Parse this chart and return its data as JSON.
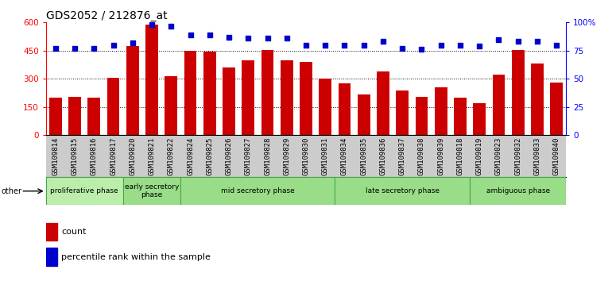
{
  "title": "GDS2052 / 212876_at",
  "samples": [
    "GSM109814",
    "GSM109815",
    "GSM109816",
    "GSM109817",
    "GSM109820",
    "GSM109821",
    "GSM109822",
    "GSM109824",
    "GSM109825",
    "GSM109826",
    "GSM109827",
    "GSM109828",
    "GSM109829",
    "GSM109830",
    "GSM109831",
    "GSM109834",
    "GSM109835",
    "GSM109836",
    "GSM109837",
    "GSM109838",
    "GSM109839",
    "GSM109818",
    "GSM109819",
    "GSM109823",
    "GSM109832",
    "GSM109833",
    "GSM109840"
  ],
  "counts": [
    200,
    205,
    200,
    305,
    475,
    590,
    315,
    450,
    445,
    360,
    400,
    455,
    400,
    390,
    300,
    275,
    215,
    340,
    235,
    205,
    255,
    200,
    170,
    320,
    455,
    380,
    280
  ],
  "percentiles": [
    77,
    77,
    77,
    80,
    82,
    98,
    97,
    89,
    89,
    87,
    86,
    86,
    86,
    80,
    80,
    80,
    80,
    83,
    77,
    76,
    80,
    80,
    79,
    85,
    83,
    83,
    80
  ],
  "phases": [
    {
      "label": "proliferative phase",
      "start": 0,
      "end": 4,
      "color": "#bbeeaa"
    },
    {
      "label": "early secretory\nphase",
      "start": 4,
      "end": 7,
      "color": "#99dd88"
    },
    {
      "label": "mid secretory phase",
      "start": 7,
      "end": 15,
      "color": "#99dd88"
    },
    {
      "label": "late secretory phase",
      "start": 15,
      "end": 22,
      "color": "#99dd88"
    },
    {
      "label": "ambiguous phase",
      "start": 22,
      "end": 27,
      "color": "#99dd88"
    }
  ],
  "bar_color": "#cc0000",
  "dot_color": "#0000cc",
  "ylim_left": [
    0,
    600
  ],
  "ylim_right": [
    0,
    100
  ],
  "yticks_left": [
    0,
    150,
    300,
    450,
    600
  ],
  "ytick_labels_left": [
    "0",
    "150",
    "300",
    "450",
    "600"
  ],
  "yticks_right": [
    0,
    25,
    50,
    75,
    100
  ],
  "ytick_labels_right": [
    "0",
    "25",
    "50",
    "75",
    "100%"
  ],
  "grid_lines": [
    150,
    300,
    450
  ],
  "phase_border_color": "#44aa44",
  "xtick_bg_color": "#cccccc"
}
